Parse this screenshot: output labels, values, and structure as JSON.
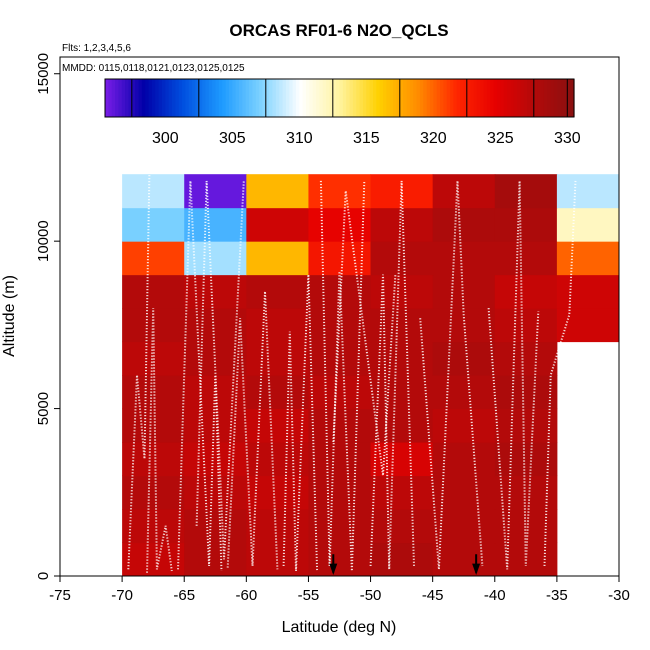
{
  "chart_data": {
    "type": "heatmap",
    "title": "ORCAS RF01-6 N2O_QCLS",
    "flights_note": "Flts: 1,2,3,4,5,6",
    "dates_note": "MMDD: 0115,0118,0121,0123,0125,0125",
    "xlabel": "Latitude (deg N)",
    "ylabel": "Altitude (m)",
    "xlim": [
      -75,
      -30
    ],
    "ylim": [
      0,
      15500
    ],
    "x_ticks": [
      -75,
      -70,
      -65,
      -60,
      -55,
      -50,
      -45,
      -40,
      -35,
      -30
    ],
    "x_tick_labels": [
      "-75",
      "-70",
      "-65",
      "-60",
      "-55",
      "-50",
      "-45",
      "-40",
      "-35",
      "-30"
    ],
    "y_ticks": [
      0,
      5000,
      10000,
      15000
    ],
    "y_tick_labels": [
      "0",
      "5000",
      "10000",
      "15000"
    ],
    "colorbar": {
      "range": [
        295.5,
        330.5
      ],
      "ticks": [
        300,
        305,
        310,
        315,
        320,
        325,
        330
      ],
      "tick_labels": [
        "300",
        "305",
        "310",
        "315",
        "320",
        "325",
        "330"
      ],
      "colors": [
        "#7a1de8",
        "#0000a8",
        "#0050e0",
        "#1e9bff",
        "#7fd3ff",
        "#ffffff",
        "#fff3a0",
        "#ffd000",
        "#ff8c00",
        "#ff2600",
        "#e60000",
        "#b20a0a",
        "#8a1010"
      ]
    },
    "x_bins": [
      -70,
      -65,
      -60,
      -55,
      -50,
      -45,
      -40,
      -35
    ],
    "y_bin_size": 1000,
    "cells": [
      [
        -70,
        0,
        326.5
      ],
      [
        -65,
        0,
        327.5
      ],
      [
        -60,
        0,
        327
      ],
      [
        -55,
        0,
        327.5
      ],
      [
        -50,
        0,
        328
      ],
      [
        -45,
        0,
        327.5
      ],
      [
        -40,
        0,
        327.5
      ],
      [
        -70,
        1000,
        327
      ],
      [
        -65,
        1000,
        327.5
      ],
      [
        -60,
        1000,
        327
      ],
      [
        -55,
        1000,
        327.5
      ],
      [
        -50,
        1000,
        327.5
      ],
      [
        -45,
        1000,
        327.5
      ],
      [
        -40,
        1000,
        327.5
      ],
      [
        -70,
        2000,
        327.5
      ],
      [
        -65,
        2000,
        327
      ],
      [
        -60,
        2000,
        326.5
      ],
      [
        -55,
        2000,
        327.5
      ],
      [
        -50,
        2000,
        327
      ],
      [
        -45,
        2000,
        327.5
      ],
      [
        -40,
        2000,
        327.5
      ],
      [
        -70,
        3000,
        327
      ],
      [
        -65,
        3000,
        326.5
      ],
      [
        -60,
        3000,
        327
      ],
      [
        -55,
        3000,
        327.5
      ],
      [
        -50,
        3000,
        325.5
      ],
      [
        -45,
        3000,
        327.5
      ],
      [
        -40,
        3000,
        328
      ],
      [
        -70,
        4000,
        327.5
      ],
      [
        -65,
        4000,
        327
      ],
      [
        -60,
        4000,
        326.5
      ],
      [
        -55,
        4000,
        327.5
      ],
      [
        -50,
        4000,
        327.5
      ],
      [
        -45,
        4000,
        327
      ],
      [
        -40,
        4000,
        327.5
      ],
      [
        -70,
        5000,
        327.5
      ],
      [
        -65,
        5000,
        327
      ],
      [
        -60,
        5000,
        327.5
      ],
      [
        -55,
        5000,
        327
      ],
      [
        -50,
        5000,
        327.5
      ],
      [
        -45,
        5000,
        327.5
      ],
      [
        -40,
        5000,
        328
      ],
      [
        -70,
        6000,
        327
      ],
      [
        -65,
        6000,
        327.5
      ],
      [
        -60,
        6000,
        327
      ],
      [
        -55,
        6000,
        327.5
      ],
      [
        -50,
        6000,
        327.5
      ],
      [
        -45,
        6000,
        328
      ],
      [
        -40,
        6000,
        327.5
      ],
      [
        -70,
        7000,
        327.5
      ],
      [
        -65,
        7000,
        327.5
      ],
      [
        -60,
        7000,
        327
      ],
      [
        -55,
        7000,
        327.5
      ],
      [
        -50,
        7000,
        327.5
      ],
      [
        -45,
        7000,
        327.5
      ],
      [
        -40,
        7000,
        327
      ],
      [
        -35,
        7000,
        326
      ],
      [
        -70,
        8000,
        327.5
      ],
      [
        -65,
        8000,
        327
      ],
      [
        -60,
        8000,
        327.5
      ],
      [
        -55,
        8000,
        327.5
      ],
      [
        -50,
        8000,
        327
      ],
      [
        -45,
        8000,
        327.5
      ],
      [
        -40,
        8000,
        326.5
      ],
      [
        -35,
        8000,
        326
      ],
      [
        -70,
        9000,
        321
      ],
      [
        -65,
        9000,
        308
      ],
      [
        -60,
        9000,
        317
      ],
      [
        -55,
        9000,
        323
      ],
      [
        -50,
        9000,
        327.5
      ],
      [
        -45,
        9000,
        327.5
      ],
      [
        -40,
        9000,
        327.5
      ],
      [
        -35,
        9000,
        320
      ],
      [
        -70,
        10000,
        307
      ],
      [
        -65,
        10000,
        305.5
      ],
      [
        -60,
        10000,
        326
      ],
      [
        -55,
        10000,
        324.5
      ],
      [
        -50,
        10000,
        327
      ],
      [
        -45,
        10000,
        328
      ],
      [
        -40,
        10000,
        328
      ],
      [
        -35,
        10000,
        312
      ],
      [
        -70,
        11000,
        308.5
      ],
      [
        -65,
        11000,
        296
      ],
      [
        -60,
        11000,
        317
      ],
      [
        -55,
        11000,
        321.5
      ],
      [
        -50,
        11000,
        322.5
      ],
      [
        -45,
        11000,
        327
      ],
      [
        -40,
        11000,
        328.5
      ],
      [
        -35,
        11000,
        308.5
      ]
    ],
    "arrows_at_latitude": [
      -53,
      -41.5
    ]
  }
}
